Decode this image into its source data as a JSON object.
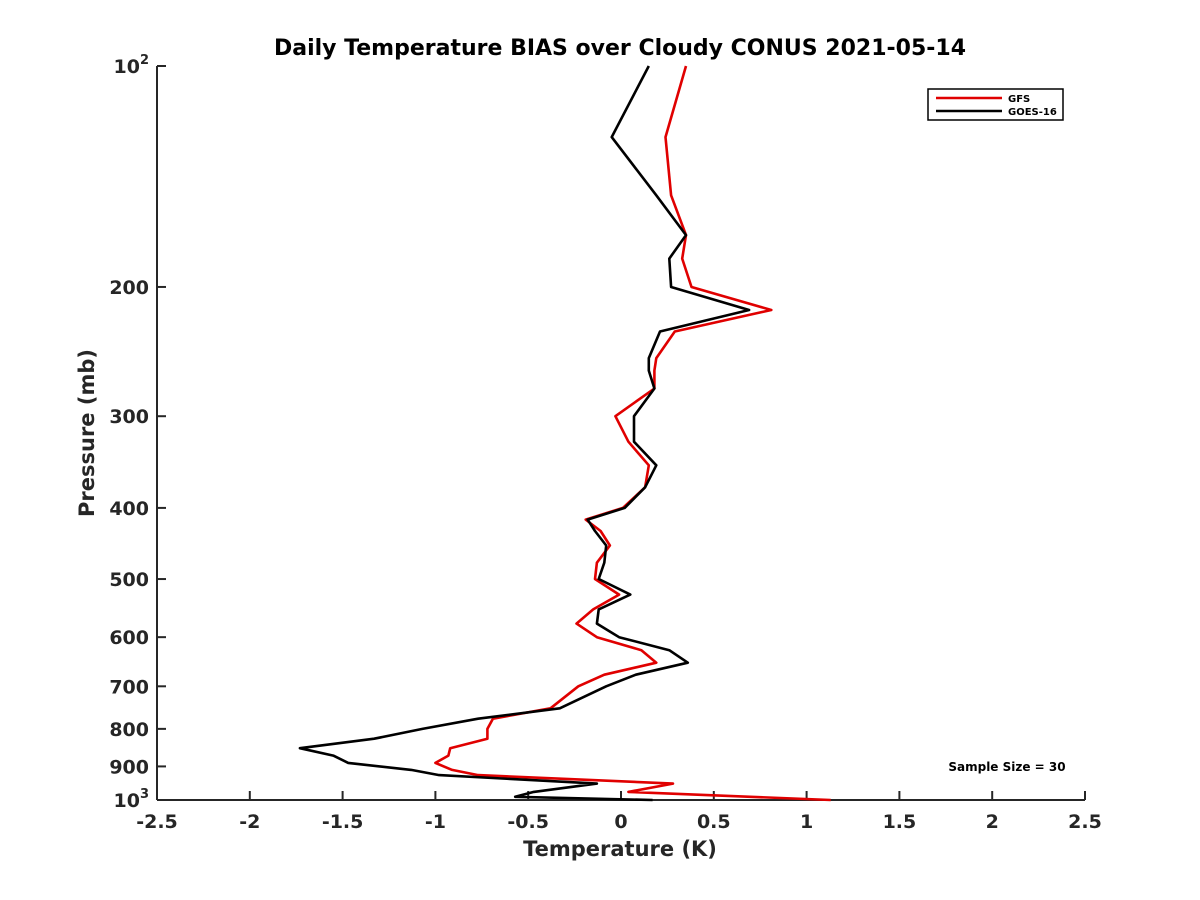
{
  "chart_data": {
    "type": "line",
    "title": "Daily Temperature BIAS over Cloudy CONUS 2021-05-14",
    "xlabel": "Temperature (K)",
    "ylabel": "Pressure (mb)",
    "xlim": [
      -2.5,
      2.5
    ],
    "ylim": [
      100,
      1000
    ],
    "yscale": "log",
    "yreversed": true,
    "grid": false,
    "legend_position": "top-right",
    "x_ticks": [
      {
        "value": -2.5,
        "label": "-2.5"
      },
      {
        "value": -2,
        "label": "-2"
      },
      {
        "value": -1.5,
        "label": "-1.5"
      },
      {
        "value": -1,
        "label": "-1"
      },
      {
        "value": -0.5,
        "label": "-0.5"
      },
      {
        "value": 0,
        "label": "0"
      },
      {
        "value": 0.5,
        "label": "0.5"
      },
      {
        "value": 1,
        "label": "1"
      },
      {
        "value": 1.5,
        "label": "1.5"
      },
      {
        "value": 2,
        "label": "2"
      },
      {
        "value": 2.5,
        "label": "2.5"
      }
    ],
    "y_ticks": [
      {
        "value": 100,
        "label": "10",
        "sup": "2"
      },
      {
        "value": 200,
        "label": "200"
      },
      {
        "value": 300,
        "label": "300"
      },
      {
        "value": 400,
        "label": "400"
      },
      {
        "value": 500,
        "label": "500"
      },
      {
        "value": 600,
        "label": "600"
      },
      {
        "value": 700,
        "label": "700"
      },
      {
        "value": 800,
        "label": "800"
      },
      {
        "value": 900,
        "label": "900"
      },
      {
        "value": 1000,
        "label": "10",
        "sup": "3"
      }
    ],
    "annotation": "Sample Size = 30",
    "series": [
      {
        "name": "GFS",
        "color": "#e00000",
        "points": [
          [
            0.35,
            100
          ],
          [
            0.24,
            125
          ],
          [
            0.27,
            150
          ],
          [
            0.35,
            170
          ],
          [
            0.33,
            183
          ],
          [
            0.38,
            200
          ],
          [
            0.81,
            215
          ],
          [
            0.29,
            230
          ],
          [
            0.19,
            250
          ],
          [
            0.18,
            260
          ],
          [
            0.18,
            275
          ],
          [
            -0.03,
            300
          ],
          [
            0.04,
            325
          ],
          [
            0.15,
            350
          ],
          [
            0.13,
            375
          ],
          [
            0.01,
            400
          ],
          [
            -0.19,
            415
          ],
          [
            -0.11,
            430
          ],
          [
            -0.06,
            450
          ],
          [
            -0.13,
            475
          ],
          [
            -0.14,
            500
          ],
          [
            -0.01,
            525
          ],
          [
            -0.15,
            550
          ],
          [
            -0.24,
            575
          ],
          [
            -0.13,
            600
          ],
          [
            0.11,
            625
          ],
          [
            0.19,
            650
          ],
          [
            -0.09,
            675
          ],
          [
            -0.23,
            700
          ],
          [
            -0.38,
            750
          ],
          [
            -0.69,
            775
          ],
          [
            -0.72,
            800
          ],
          [
            -0.72,
            825
          ],
          [
            -0.92,
            850
          ],
          [
            -0.93,
            870
          ],
          [
            -1.0,
            890
          ],
          [
            -0.91,
            910
          ],
          [
            -0.77,
            925
          ],
          [
            0.28,
            950
          ],
          [
            0.04,
            975
          ],
          [
            1.13,
            1000
          ]
        ]
      },
      {
        "name": "GOES-16",
        "color": "#000000",
        "points": [
          [
            0.15,
            100
          ],
          [
            -0.05,
            125
          ],
          [
            0.19,
            150
          ],
          [
            0.35,
            170
          ],
          [
            0.26,
            183
          ],
          [
            0.27,
            200
          ],
          [
            0.69,
            215
          ],
          [
            0.21,
            230
          ],
          [
            0.15,
            250
          ],
          [
            0.15,
            260
          ],
          [
            0.18,
            275
          ],
          [
            0.07,
            300
          ],
          [
            0.07,
            325
          ],
          [
            0.19,
            350
          ],
          [
            0.13,
            375
          ],
          [
            0.02,
            400
          ],
          [
            -0.18,
            415
          ],
          [
            -0.14,
            430
          ],
          [
            -0.08,
            450
          ],
          [
            -0.09,
            475
          ],
          [
            -0.12,
            500
          ],
          [
            0.05,
            525
          ],
          [
            -0.12,
            550
          ],
          [
            -0.13,
            575
          ],
          [
            -0.01,
            600
          ],
          [
            0.26,
            625
          ],
          [
            0.36,
            650
          ],
          [
            0.08,
            675
          ],
          [
            -0.08,
            700
          ],
          [
            -0.33,
            750
          ],
          [
            -0.77,
            775
          ],
          [
            -1.07,
            800
          ],
          [
            -1.33,
            825
          ],
          [
            -1.73,
            850
          ],
          [
            -1.55,
            870
          ],
          [
            -1.47,
            890
          ],
          [
            -1.13,
            910
          ],
          [
            -0.98,
            925
          ],
          [
            -0.13,
            950
          ],
          [
            -0.47,
            975
          ],
          [
            -0.57,
            990
          ],
          [
            0.17,
            1000
          ]
        ]
      }
    ]
  }
}
